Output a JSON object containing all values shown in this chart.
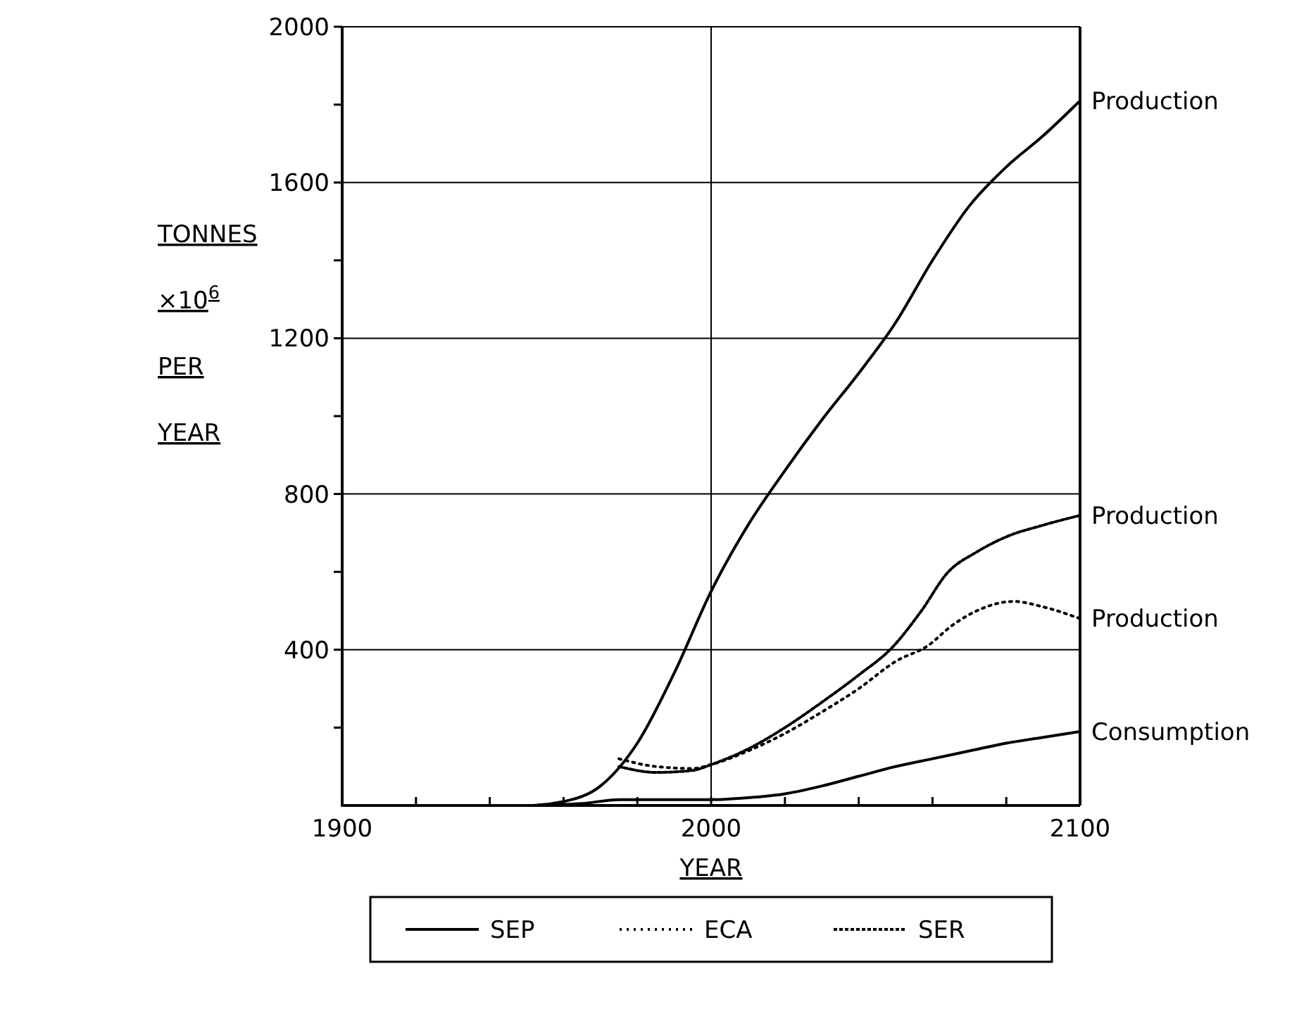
{
  "chart_data": {
    "type": "line",
    "xlabel": "YEAR",
    "ylabel": "TONNES ×10$^{6}$ PER YEAR",
    "xlim": [
      1900,
      2100
    ],
    "ylim": [
      0,
      2000
    ],
    "xticks": [
      1900,
      {
        "value": 1920,
        "label": null
      },
      {
        "value": 1940,
        "label": null
      },
      {
        "value": 1960,
        "label": null
      },
      {
        "value": 1980,
        "label": null
      },
      2000,
      {
        "value": 2020,
        "label": null
      },
      {
        "value": 2040,
        "label": null
      },
      {
        "value": 2060,
        "label": null
      },
      {
        "value": 2080,
        "label": null
      },
      2100
    ],
    "yticks": [
      {
        "value": 200,
        "label": null
      },
      400,
      {
        "value": 600,
        "label": null
      },
      800,
      {
        "value": 1000,
        "label": null
      },
      1200,
      {
        "value": 1400,
        "label": null
      },
      1600,
      {
        "value": 1800,
        "label": null
      },
      2000
    ],
    "grid": true,
    "legend": "bottom",
    "series": [
      {
        "name": "SEP",
        "color": "#000000",
        "line_style": "solid",
        "x": [
          1900,
          1950,
          1960,
          1970,
          1980,
          1990,
          2000,
          2010,
          2020,
          2030,
          2040,
          2050,
          2060,
          2070,
          2080,
          2090,
          2100
        ],
        "values": [
          0,
          0,
          10,
          50,
          160,
          340,
          550,
          720,
          860,
          990,
          1110,
          1240,
          1400,
          1540,
          1640,
          1720,
          1810
        ]
      },
      {
        "color": "#000000",
        "line_style": "solid",
        "x": [
          1900,
          1950,
          1965,
          1975,
          2000,
          2010,
          2020,
          2030,
          2040,
          2050,
          2060,
          2070,
          2080,
          2090,
          2100
        ],
        "values": [
          0,
          0,
          5,
          15,
          15,
          20,
          30,
          50,
          75,
          100,
          120,
          140,
          160,
          175,
          190
        ]
      },
      {
        "name": "ECA",
        "color": "#000000",
        "line_style": "dotted",
        "x": [
          1975,
          1985,
          1995,
          2000,
          2010,
          2020,
          2030,
          2040,
          2050,
          2059,
          2065,
          2072,
          2082,
          2090,
          2100
        ],
        "values": [
          120,
          100,
          95,
          105,
          140,
          185,
          240,
          300,
          370,
          412,
          460,
          500,
          524,
          510,
          480
        ]
      },
      {
        "name": "SER",
        "color": "#000000",
        "line_style": "dashed",
        "x": [
          1975,
          1985,
          1995,
          2000,
          2010,
          2020,
          2030,
          2040,
          2049,
          2057,
          2064,
          2072,
          2080,
          2090,
          2100
        ],
        "values": [
          100,
          85,
          90,
          105,
          145,
          200,
          265,
          335,
          405,
          500,
          597,
          651,
          690,
          720,
          745
        ]
      }
    ],
    "annotations": [
      "Production",
      "Consumption",
      "Production",
      "Production"
    ]
  }
}
